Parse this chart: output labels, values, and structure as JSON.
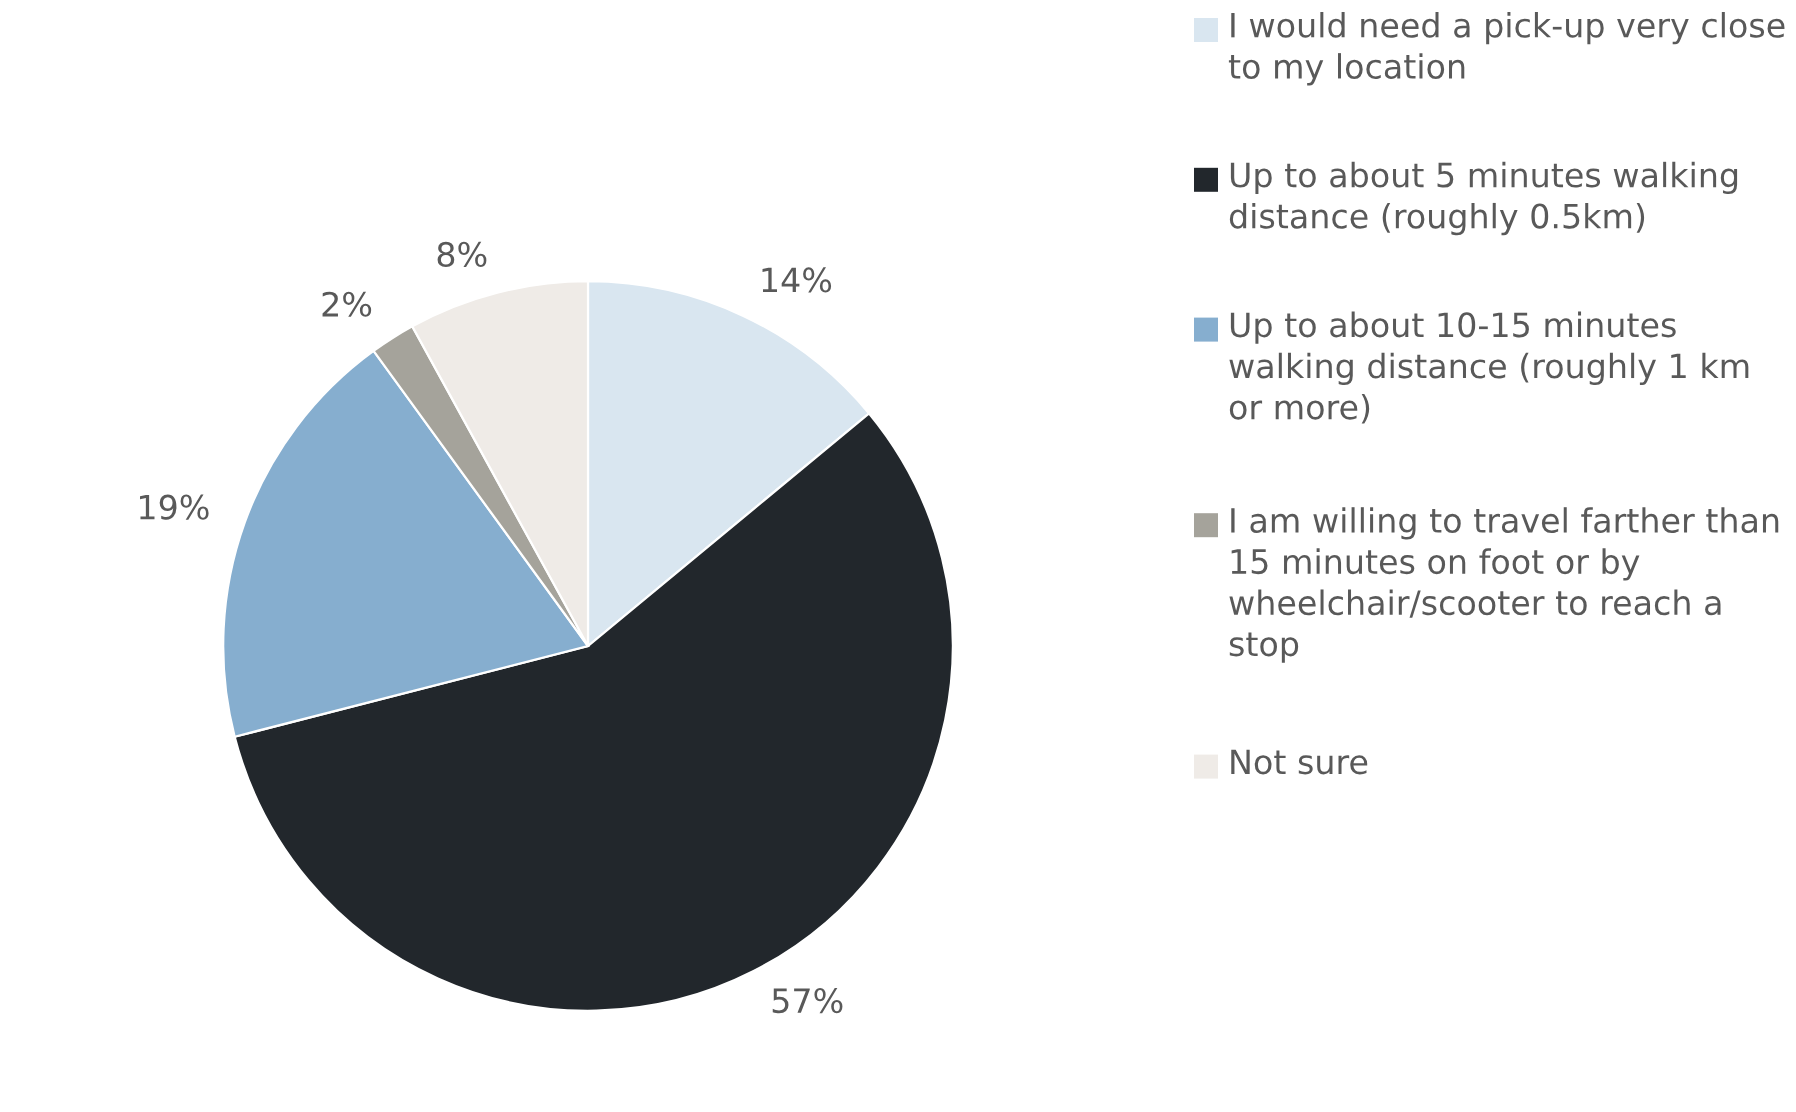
{
  "chart_data": {
    "type": "pie",
    "categories": [
      "I would need a pick-up very close to my location",
      "Up to about 5 minutes walking distance (roughly 0.5km)",
      "Up to about 10-15 minutes walking distance (roughly 1 km or more)",
      "I am willing to travel farther than 15 minutes on foot or by wheelchair/scooter to reach a stop",
      "Not sure"
    ],
    "values": [
      14,
      57,
      19,
      2,
      8
    ],
    "value_labels": [
      "14%",
      "57%",
      "19%",
      "2%",
      "8%"
    ],
    "colors": [
      "#d9e6f0",
      "#22272c",
      "#86aecf",
      "#a5a39b",
      "#efebe7"
    ],
    "legend": "right"
  }
}
